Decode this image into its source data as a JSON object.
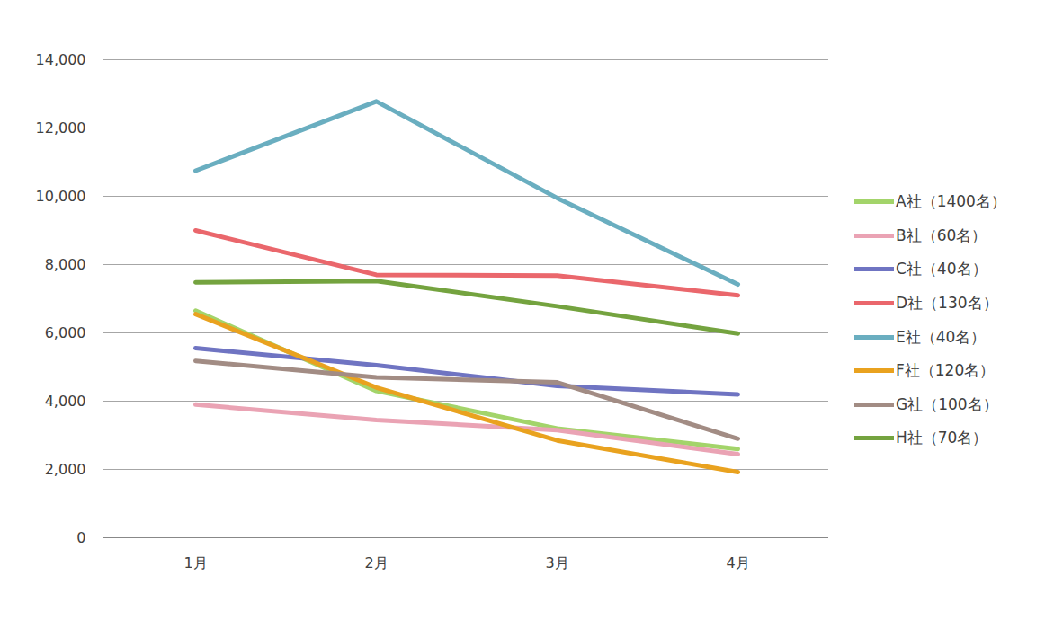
{
  "chart_data": {
    "type": "line",
    "categories": [
      "1月",
      "2月",
      "3月",
      "4月"
    ],
    "series": [
      {
        "name": "A社（1400名）",
        "color": "#a3d46a",
        "values": [
          6650,
          4300,
          3200,
          2600
        ]
      },
      {
        "name": "B社（60名）",
        "color": "#eaa3b4",
        "values": [
          3900,
          3450,
          3150,
          2450
        ]
      },
      {
        "name": "C社（40名）",
        "color": "#6f74c2",
        "values": [
          5550,
          5050,
          4450,
          4200
        ]
      },
      {
        "name": "D社（130名）",
        "color": "#ea676c",
        "values": [
          9000,
          7700,
          7680,
          7100
        ]
      },
      {
        "name": "E社（40名）",
        "color": "#6aaec0",
        "values": [
          10750,
          12780,
          9950,
          7420
        ]
      },
      {
        "name": "F社（120名）",
        "color": "#e9a21f",
        "values": [
          6550,
          4400,
          2850,
          1920
        ]
      },
      {
        "name": "G社（100名）",
        "color": "#a28c84",
        "values": [
          5180,
          4700,
          4550,
          2900
        ]
      },
      {
        "name": "H社（70名）",
        "color": "#74a33f",
        "values": [
          7480,
          7520,
          6780,
          5980
        ]
      }
    ],
    "ylim": [
      0,
      14000
    ],
    "yticks": [
      0,
      2000,
      4000,
      6000,
      8000,
      10000,
      12000,
      14000
    ],
    "grid": true,
    "legend": "right"
  }
}
